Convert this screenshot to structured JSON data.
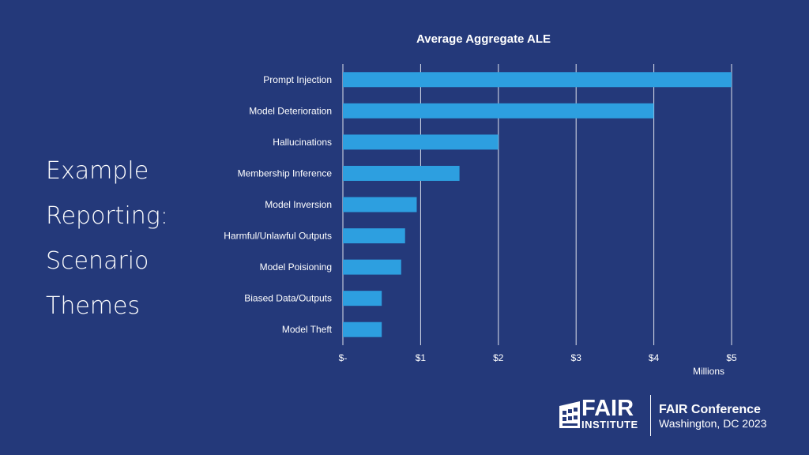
{
  "slide": {
    "side_title_lines": [
      "Example",
      "Reporting:",
      "Scenario",
      "Themes"
    ]
  },
  "chart_data": {
    "type": "bar",
    "orientation": "horizontal",
    "title": "Average Aggregate ALE",
    "xlabel": "Millions",
    "xlim": [
      0,
      5
    ],
    "x_ticks": [
      0,
      1,
      2,
      3,
      4,
      5
    ],
    "x_tick_labels": [
      "$-",
      "$1",
      "$2",
      "$3",
      "$4",
      "$5"
    ],
    "grid": "vertical",
    "bar_color": "#2d9fe0",
    "categories": [
      "Prompt Injection",
      "Model Deterioration",
      "Hallucinations",
      "Membership Inference",
      "Model Inversion",
      "Harmful/Unlawful Outputs",
      "Model Poisioning",
      "Biased Data/Outputs",
      "Model Theft"
    ],
    "values": [
      5.0,
      4.0,
      2.0,
      1.5,
      0.95,
      0.8,
      0.75,
      0.5,
      0.5
    ]
  },
  "branding": {
    "logo_top": "FAIR",
    "logo_bottom": "INSTITUTE",
    "conference": "FAIR Conference",
    "location": "Washington, DC 2023"
  },
  "colors": {
    "background": "#24397a",
    "bar": "#2d9fe0",
    "grid": "#ffffff",
    "text": "#ffffff"
  }
}
